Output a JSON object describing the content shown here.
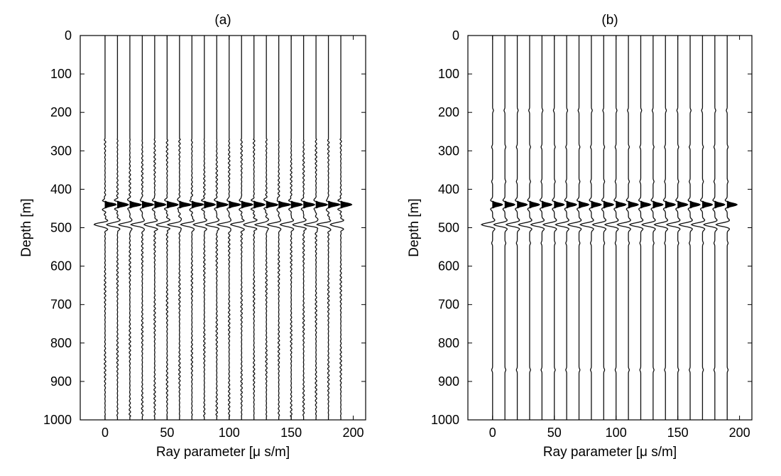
{
  "chart_data": [
    {
      "type": "line",
      "panel_label": "(a)",
      "xlabel": "Ray parameter [μ s/m]",
      "ylabel": "Depth [m]",
      "xlim": [
        -20,
        210
      ],
      "ylim": [
        1000,
        0
      ],
      "xticks": [
        0,
        50,
        100,
        150,
        200
      ],
      "yticks": [
        0,
        100,
        200,
        300,
        400,
        500,
        600,
        700,
        800,
        900,
        1000
      ],
      "grid": false,
      "legend": "none",
      "trace_ray_parameters": [
        0,
        10,
        20,
        30,
        40,
        50,
        60,
        70,
        80,
        90,
        100,
        110,
        120,
        130,
        140,
        150,
        160,
        170,
        180,
        190
      ],
      "events": [
        {
          "depth": 440,
          "polarity": "positive",
          "amplitude_ray_param_units": 9,
          "shape": "filled"
        },
        {
          "depth": 492,
          "polarity": "negative",
          "amplitude_ray_param_units": 9,
          "shape": "unfilled"
        }
      ],
      "noise": "oscillating noise between 270 m and 990 m depth"
    },
    {
      "type": "line",
      "panel_label": "(b)",
      "xlabel": "Ray parameter [μ s/m]",
      "ylabel": "Depth [m]",
      "xlim": [
        -20,
        210
      ],
      "ylim": [
        1000,
        0
      ],
      "xticks": [
        0,
        50,
        100,
        150,
        200
      ],
      "yticks": [
        0,
        100,
        200,
        300,
        400,
        500,
        600,
        700,
        800,
        900,
        1000
      ],
      "grid": false,
      "legend": "none",
      "trace_ray_parameters": [
        0,
        10,
        20,
        30,
        40,
        50,
        60,
        70,
        80,
        90,
        100,
        110,
        120,
        130,
        140,
        150,
        160,
        170,
        180,
        190
      ],
      "events": [
        {
          "depth": 440,
          "polarity": "positive",
          "amplitude_ray_param_units": 8,
          "shape": "filled"
        },
        {
          "depth": 492,
          "polarity": "negative",
          "amplitude_ray_param_units": 9,
          "shape": "unfilled"
        }
      ],
      "noise": "small bumps near 195, 290, 380, 540, 870 m depth"
    }
  ]
}
